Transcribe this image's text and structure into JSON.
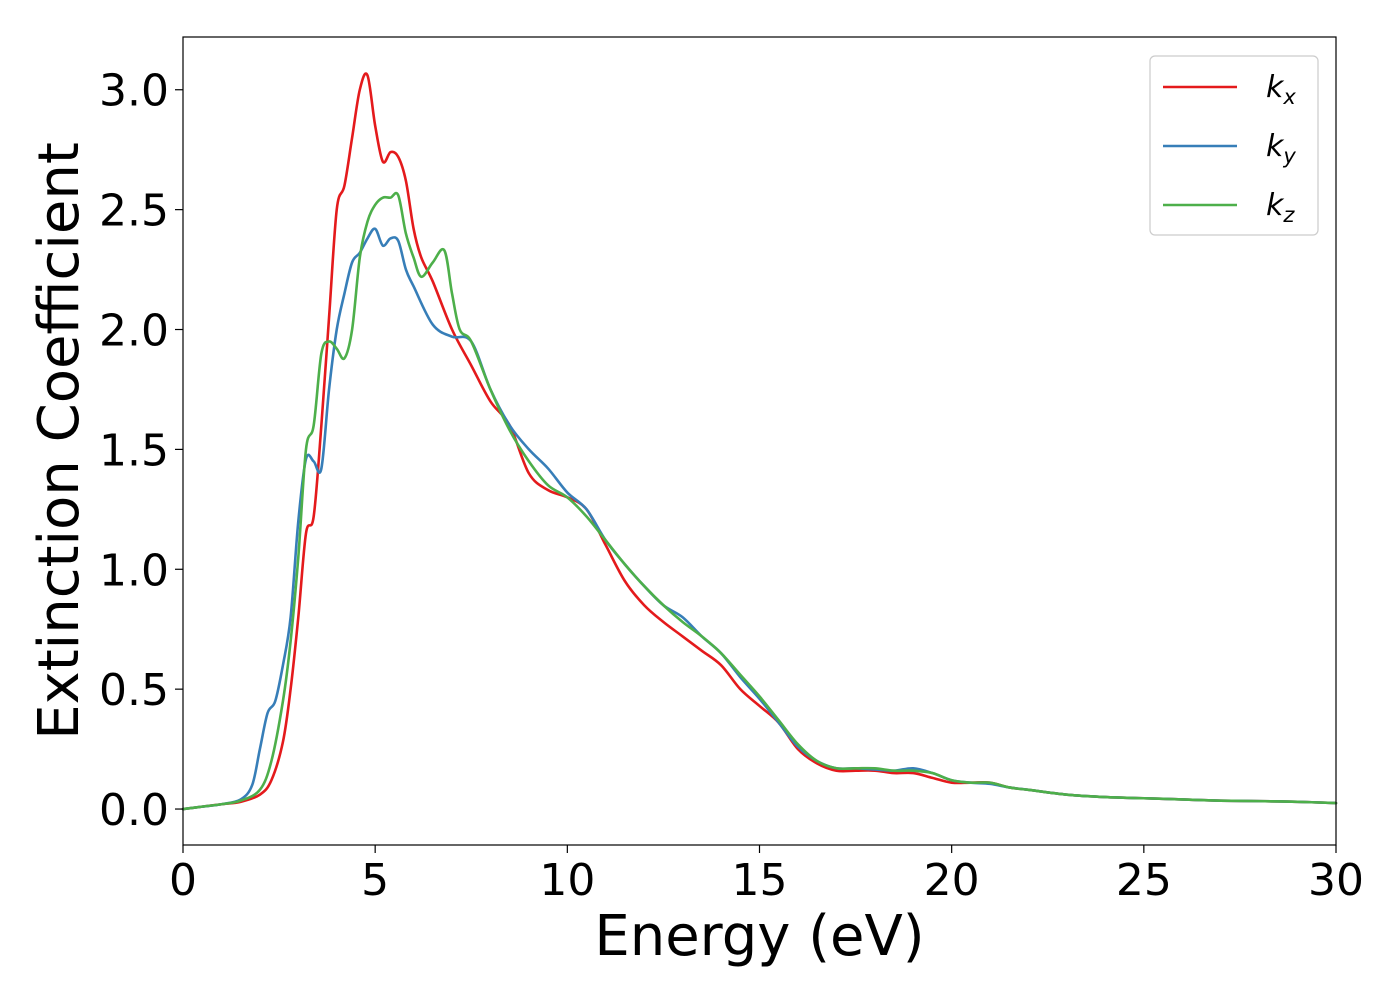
{
  "chart_data": {
    "type": "line",
    "xlabel": "Energy (eV)",
    "ylabel": "Extinction Coefficient",
    "xlim": [
      0,
      30
    ],
    "ylim": [
      -0.15,
      3.22
    ],
    "xticks": [
      0,
      5,
      10,
      15,
      20,
      25,
      30
    ],
    "xtick_labels": [
      "0",
      "5",
      "10",
      "15",
      "20",
      "25",
      "30"
    ],
    "yticks": [
      0.0,
      0.5,
      1.0,
      1.5,
      2.0,
      2.5,
      3.0
    ],
    "ytick_labels": [
      "0.0",
      "0.5",
      "1.0",
      "1.5",
      "2.0",
      "2.5",
      "3.0"
    ],
    "grid": false,
    "legend_position": "top-right",
    "series": [
      {
        "name": "k_x",
        "label_main": "k",
        "label_sub": "x",
        "color": "#e41a1c",
        "x": [
          0,
          0.5,
          1,
          1.5,
          2,
          2.3,
          2.6,
          2.8,
          3,
          3.2,
          3.4,
          3.6,
          3.8,
          4,
          4.2,
          4.4,
          4.6,
          4.8,
          5,
          5.2,
          5.4,
          5.6,
          5.8,
          6,
          6.2,
          6.5,
          7,
          7.5,
          8,
          8.5,
          9,
          9.5,
          10,
          10.5,
          11,
          11.5,
          12,
          12.5,
          13,
          13.5,
          14,
          14.5,
          15,
          15.5,
          16,
          16.5,
          17,
          17.5,
          18,
          18.5,
          19,
          19.5,
          20,
          20.5,
          21,
          21.5,
          22,
          23,
          24,
          25,
          26,
          27,
          28,
          29,
          30
        ],
        "y": [
          0,
          0.01,
          0.02,
          0.03,
          0.06,
          0.12,
          0.28,
          0.5,
          0.8,
          1.15,
          1.22,
          1.6,
          2.05,
          2.5,
          2.6,
          2.8,
          3.0,
          3.06,
          2.85,
          2.7,
          2.74,
          2.72,
          2.62,
          2.42,
          2.3,
          2.2,
          2.0,
          1.85,
          1.7,
          1.6,
          1.4,
          1.33,
          1.3,
          1.25,
          1.1,
          0.95,
          0.85,
          0.78,
          0.72,
          0.66,
          0.6,
          0.5,
          0.43,
          0.36,
          0.25,
          0.19,
          0.16,
          0.16,
          0.16,
          0.15,
          0.15,
          0.13,
          0.11,
          0.11,
          0.11,
          0.09,
          0.08,
          0.06,
          0.05,
          0.045,
          0.04,
          0.035,
          0.033,
          0.03,
          0.025
        ]
      },
      {
        "name": "k_y",
        "label_main": "k",
        "label_sub": "y",
        "color": "#377eb8",
        "x": [
          0,
          0.5,
          1,
          1.5,
          1.8,
          2,
          2.2,
          2.4,
          2.6,
          2.8,
          3,
          3.2,
          3.4,
          3.6,
          3.8,
          4,
          4.2,
          4.4,
          4.6,
          4.8,
          5,
          5.2,
          5.4,
          5.6,
          5.8,
          6,
          6.5,
          7,
          7.5,
          8,
          8.5,
          9,
          9.5,
          10,
          10.5,
          11,
          11.5,
          12,
          12.5,
          13,
          13.5,
          14,
          14.5,
          15,
          15.5,
          16,
          16.5,
          17,
          17.5,
          18,
          18.5,
          19,
          19.5,
          20,
          20.5,
          21,
          21.5,
          22,
          23,
          24,
          25,
          26,
          27,
          28,
          29,
          30
        ],
        "y": [
          0,
          0.01,
          0.02,
          0.04,
          0.1,
          0.25,
          0.4,
          0.45,
          0.6,
          0.8,
          1.2,
          1.46,
          1.45,
          1.42,
          1.75,
          2.0,
          2.15,
          2.28,
          2.32,
          2.38,
          2.42,
          2.35,
          2.38,
          2.37,
          2.25,
          2.18,
          2.02,
          1.97,
          1.95,
          1.75,
          1.6,
          1.5,
          1.42,
          1.32,
          1.25,
          1.12,
          1.02,
          0.93,
          0.85,
          0.8,
          0.72,
          0.65,
          0.55,
          0.46,
          0.36,
          0.26,
          0.2,
          0.17,
          0.17,
          0.165,
          0.16,
          0.17,
          0.15,
          0.12,
          0.11,
          0.105,
          0.09,
          0.08,
          0.06,
          0.05,
          0.045,
          0.04,
          0.035,
          0.033,
          0.03,
          0.025
        ]
      },
      {
        "name": "k_z",
        "label_main": "k",
        "label_sub": "z",
        "color": "#4daf4a",
        "x": [
          0,
          0.5,
          1,
          1.5,
          2,
          2.3,
          2.6,
          2.8,
          3,
          3.2,
          3.4,
          3.6,
          3.8,
          4,
          4.2,
          4.4,
          4.6,
          4.8,
          5,
          5.2,
          5.4,
          5.6,
          5.8,
          6,
          6.2,
          6.5,
          6.8,
          7,
          7.2,
          7.5,
          8,
          8.5,
          9,
          9.5,
          10,
          10.5,
          11,
          11.5,
          12,
          12.5,
          13,
          13.5,
          14,
          14.5,
          15,
          15.5,
          16,
          16.5,
          17,
          17.5,
          18,
          18.5,
          19,
          19.5,
          20,
          20.5,
          21,
          21.5,
          22,
          23,
          24,
          25,
          26,
          27,
          28,
          29,
          30
        ],
        "y": [
          0,
          0.01,
          0.02,
          0.035,
          0.08,
          0.2,
          0.45,
          0.7,
          1.05,
          1.5,
          1.6,
          1.9,
          1.95,
          1.92,
          1.88,
          2.0,
          2.3,
          2.45,
          2.52,
          2.55,
          2.55,
          2.56,
          2.4,
          2.3,
          2.22,
          2.28,
          2.33,
          2.15,
          2.0,
          1.95,
          1.75,
          1.58,
          1.45,
          1.35,
          1.3,
          1.22,
          1.12,
          1.02,
          0.93,
          0.85,
          0.78,
          0.72,
          0.65,
          0.56,
          0.47,
          0.37,
          0.27,
          0.2,
          0.17,
          0.17,
          0.17,
          0.16,
          0.16,
          0.15,
          0.12,
          0.11,
          0.11,
          0.09,
          0.08,
          0.06,
          0.05,
          0.045,
          0.04,
          0.035,
          0.033,
          0.03,
          0.025
        ]
      }
    ]
  }
}
